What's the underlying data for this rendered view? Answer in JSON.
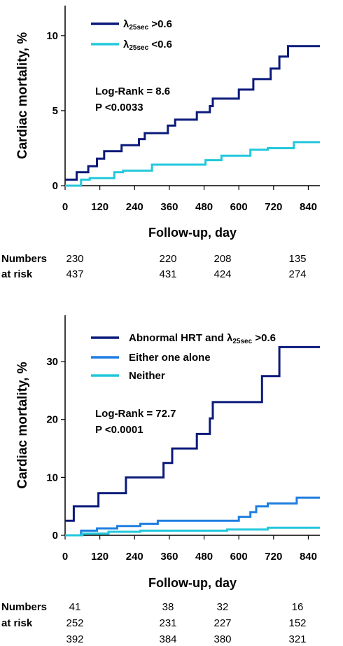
{
  "chart_data": [
    {
      "type": "line",
      "xlabel": "Follow-up, day",
      "ylabel": "Cardiac mortality, %",
      "xlim": [
        0,
        880
      ],
      "ylim": [
        0,
        12
      ],
      "xticks": [
        "0",
        "120",
        "240",
        "360",
        "480",
        "600",
        "720",
        "840"
      ],
      "yticks": [
        "0",
        "5",
        "10"
      ],
      "stat_lines": [
        "Log-Rank = 8.6",
        "P <0.0033"
      ],
      "series": [
        {
          "name_main": "λ",
          "name_sub": "25sec",
          "name_rest": " >0.6",
          "color": "#0b1a7a",
          "steps": [
            [
              0,
              0.4
            ],
            [
              40,
              0.4
            ],
            [
              40,
              0.9
            ],
            [
              80,
              0.9
            ],
            [
              80,
              1.3
            ],
            [
              110,
              1.3
            ],
            [
              110,
              1.8
            ],
            [
              135,
              1.8
            ],
            [
              135,
              2.3
            ],
            [
              195,
              2.3
            ],
            [
              195,
              2.7
            ],
            [
              255,
              2.7
            ],
            [
              255,
              3.1
            ],
            [
              275,
              3.1
            ],
            [
              275,
              3.5
            ],
            [
              355,
              3.5
            ],
            [
              355,
              4.0
            ],
            [
              380,
              4.0
            ],
            [
              380,
              4.4
            ],
            [
              455,
              4.4
            ],
            [
              455,
              4.9
            ],
            [
              500,
              4.9
            ],
            [
              500,
              5.3
            ],
            [
              510,
              5.3
            ],
            [
              510,
              5.8
            ],
            [
              600,
              5.8
            ],
            [
              600,
              6.4
            ],
            [
              650,
              6.4
            ],
            [
              650,
              7.1
            ],
            [
              710,
              7.1
            ],
            [
              710,
              7.8
            ],
            [
              740,
              7.8
            ],
            [
              740,
              8.6
            ],
            [
              770,
              8.6
            ],
            [
              770,
              9.3
            ],
            [
              880,
              9.3
            ]
          ]
        },
        {
          "name_main": "λ",
          "name_sub": "25sec",
          "name_rest": " <0.6",
          "color": "#22c8dc",
          "steps": [
            [
              0,
              0
            ],
            [
              55,
              0
            ],
            [
              55,
              0.4
            ],
            [
              85,
              0.4
            ],
            [
              85,
              0.5
            ],
            [
              170,
              0.5
            ],
            [
              170,
              0.9
            ],
            [
              200,
              0.9
            ],
            [
              200,
              1.0
            ],
            [
              300,
              1.0
            ],
            [
              300,
              1.4
            ],
            [
              485,
              1.4
            ],
            [
              485,
              1.7
            ],
            [
              540,
              1.7
            ],
            [
              540,
              2.0
            ],
            [
              640,
              2.0
            ],
            [
              640,
              2.4
            ],
            [
              700,
              2.4
            ],
            [
              700,
              2.5
            ],
            [
              790,
              2.5
            ],
            [
              790,
              2.9
            ],
            [
              880,
              2.9
            ]
          ]
        }
      ],
      "risk_table": {
        "label_line1": "Numbers",
        "label_line2": "at risk",
        "rows": [
          [
            "230",
            "220",
            "208",
            "135"
          ],
          [
            "437",
            "431",
            "424",
            "274"
          ]
        ]
      }
    },
    {
      "type": "line",
      "xlabel": "Follow-up, day",
      "ylabel": "Cardiac mortality, %",
      "xlim": [
        0,
        880
      ],
      "ylim": [
        0,
        38
      ],
      "xticks": [
        "0",
        "120",
        "240",
        "360",
        "480",
        "600",
        "720",
        "840"
      ],
      "yticks": [
        "0",
        "10",
        "20",
        "30"
      ],
      "stat_lines": [
        "Log-Rank = 72.7",
        "P <0.0001"
      ],
      "series": [
        {
          "name_main": "Abnormal HRT and λ",
          "name_sub": "25sec",
          "name_rest": " >0.6",
          "color": "#0b1a7a",
          "steps": [
            [
              0,
              2.5
            ],
            [
              30,
              2.5
            ],
            [
              30,
              5.0
            ],
            [
              115,
              5.0
            ],
            [
              115,
              7.3
            ],
            [
              210,
              7.3
            ],
            [
              210,
              10.0
            ],
            [
              340,
              10.0
            ],
            [
              340,
              12.5
            ],
            [
              370,
              12.5
            ],
            [
              370,
              15.0
            ],
            [
              455,
              15.0
            ],
            [
              455,
              17.5
            ],
            [
              500,
              17.5
            ],
            [
              500,
              20.2
            ],
            [
              510,
              20.2
            ],
            [
              510,
              23.0
            ],
            [
              680,
              23.0
            ],
            [
              680,
              27.5
            ],
            [
              740,
              27.5
            ],
            [
              740,
              32.5
            ],
            [
              880,
              32.5
            ]
          ]
        },
        {
          "name_main": "Either one alone",
          "name_sub": "",
          "name_rest": "",
          "color": "#1f7fe0",
          "steps": [
            [
              0,
              0
            ],
            [
              55,
              0
            ],
            [
              55,
              0.8
            ],
            [
              110,
              0.8
            ],
            [
              110,
              1.2
            ],
            [
              180,
              1.2
            ],
            [
              180,
              1.6
            ],
            [
              260,
              1.6
            ],
            [
              260,
              2.0
            ],
            [
              320,
              2.0
            ],
            [
              320,
              2.5
            ],
            [
              600,
              2.5
            ],
            [
              600,
              3.2
            ],
            [
              640,
              3.2
            ],
            [
              640,
              4.0
            ],
            [
              660,
              4.0
            ],
            [
              660,
              5.0
            ],
            [
              700,
              5.0
            ],
            [
              700,
              5.5
            ],
            [
              800,
              5.5
            ],
            [
              800,
              6.5
            ],
            [
              880,
              6.5
            ]
          ]
        },
        {
          "name_main": "Neither",
          "name_sub": "",
          "name_rest": "",
          "color": "#22c8dc",
          "steps": [
            [
              0,
              0
            ],
            [
              60,
              0
            ],
            [
              60,
              0.3
            ],
            [
              150,
              0.3
            ],
            [
              150,
              0.6
            ],
            [
              260,
              0.6
            ],
            [
              260,
              0.8
            ],
            [
              560,
              0.8
            ],
            [
              560,
              1.0
            ],
            [
              700,
              1.0
            ],
            [
              700,
              1.3
            ],
            [
              880,
              1.3
            ]
          ]
        }
      ],
      "risk_table": {
        "label_line1": "Numbers",
        "label_line2": "at risk",
        "rows": [
          [
            "41",
            "38",
            "32",
            "16"
          ],
          [
            "252",
            "231",
            "227",
            "152"
          ],
          [
            "392",
            "384",
            "380",
            "321"
          ]
        ]
      }
    }
  ]
}
